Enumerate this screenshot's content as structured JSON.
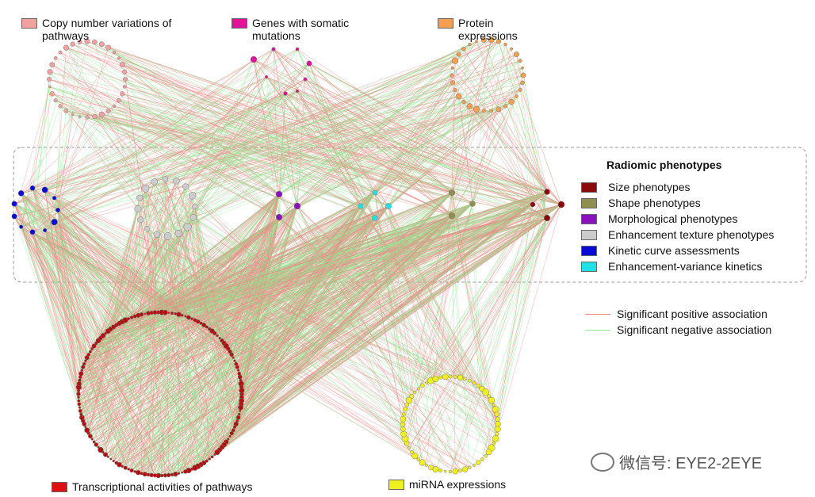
{
  "groups": {
    "cnv": {
      "label": "Copy number variations of pathways",
      "color": "#f2a0a0"
    },
    "somatic": {
      "label": "Genes with somatic mutations",
      "color": "#e0129a"
    },
    "protein": {
      "label": "Protein expressions",
      "color": "#f0a050"
    },
    "transcriptional": {
      "label": "Transcriptional activities of pathways",
      "color": "#dd1111"
    },
    "mirna": {
      "label": "miRNA expressions",
      "color": "#f0f020"
    }
  },
  "radiomic": {
    "title": "Radiomic phenotypes",
    "items": [
      {
        "label": "Size phenotypes",
        "color": "#8b0a0a"
      },
      {
        "label": "Shape phenotypes",
        "color": "#8f8f50"
      },
      {
        "label": "Morphological phenotypes",
        "color": "#8a10c0"
      },
      {
        "label": "Enhancement texture phenotypes",
        "color": "#cccccc"
      },
      {
        "label": "Kinetic curve assessments",
        "color": "#0a0ad8"
      },
      {
        "label": "Enhancement-variance kinetics",
        "color": "#20e0e8"
      }
    ]
  },
  "associations": [
    {
      "label": "Significant positive association",
      "color": "#f08888"
    },
    {
      "label": "Significant negative association",
      "color": "#8ee88e"
    }
  ],
  "watermark": "微信号: EYE2-2EYE"
}
